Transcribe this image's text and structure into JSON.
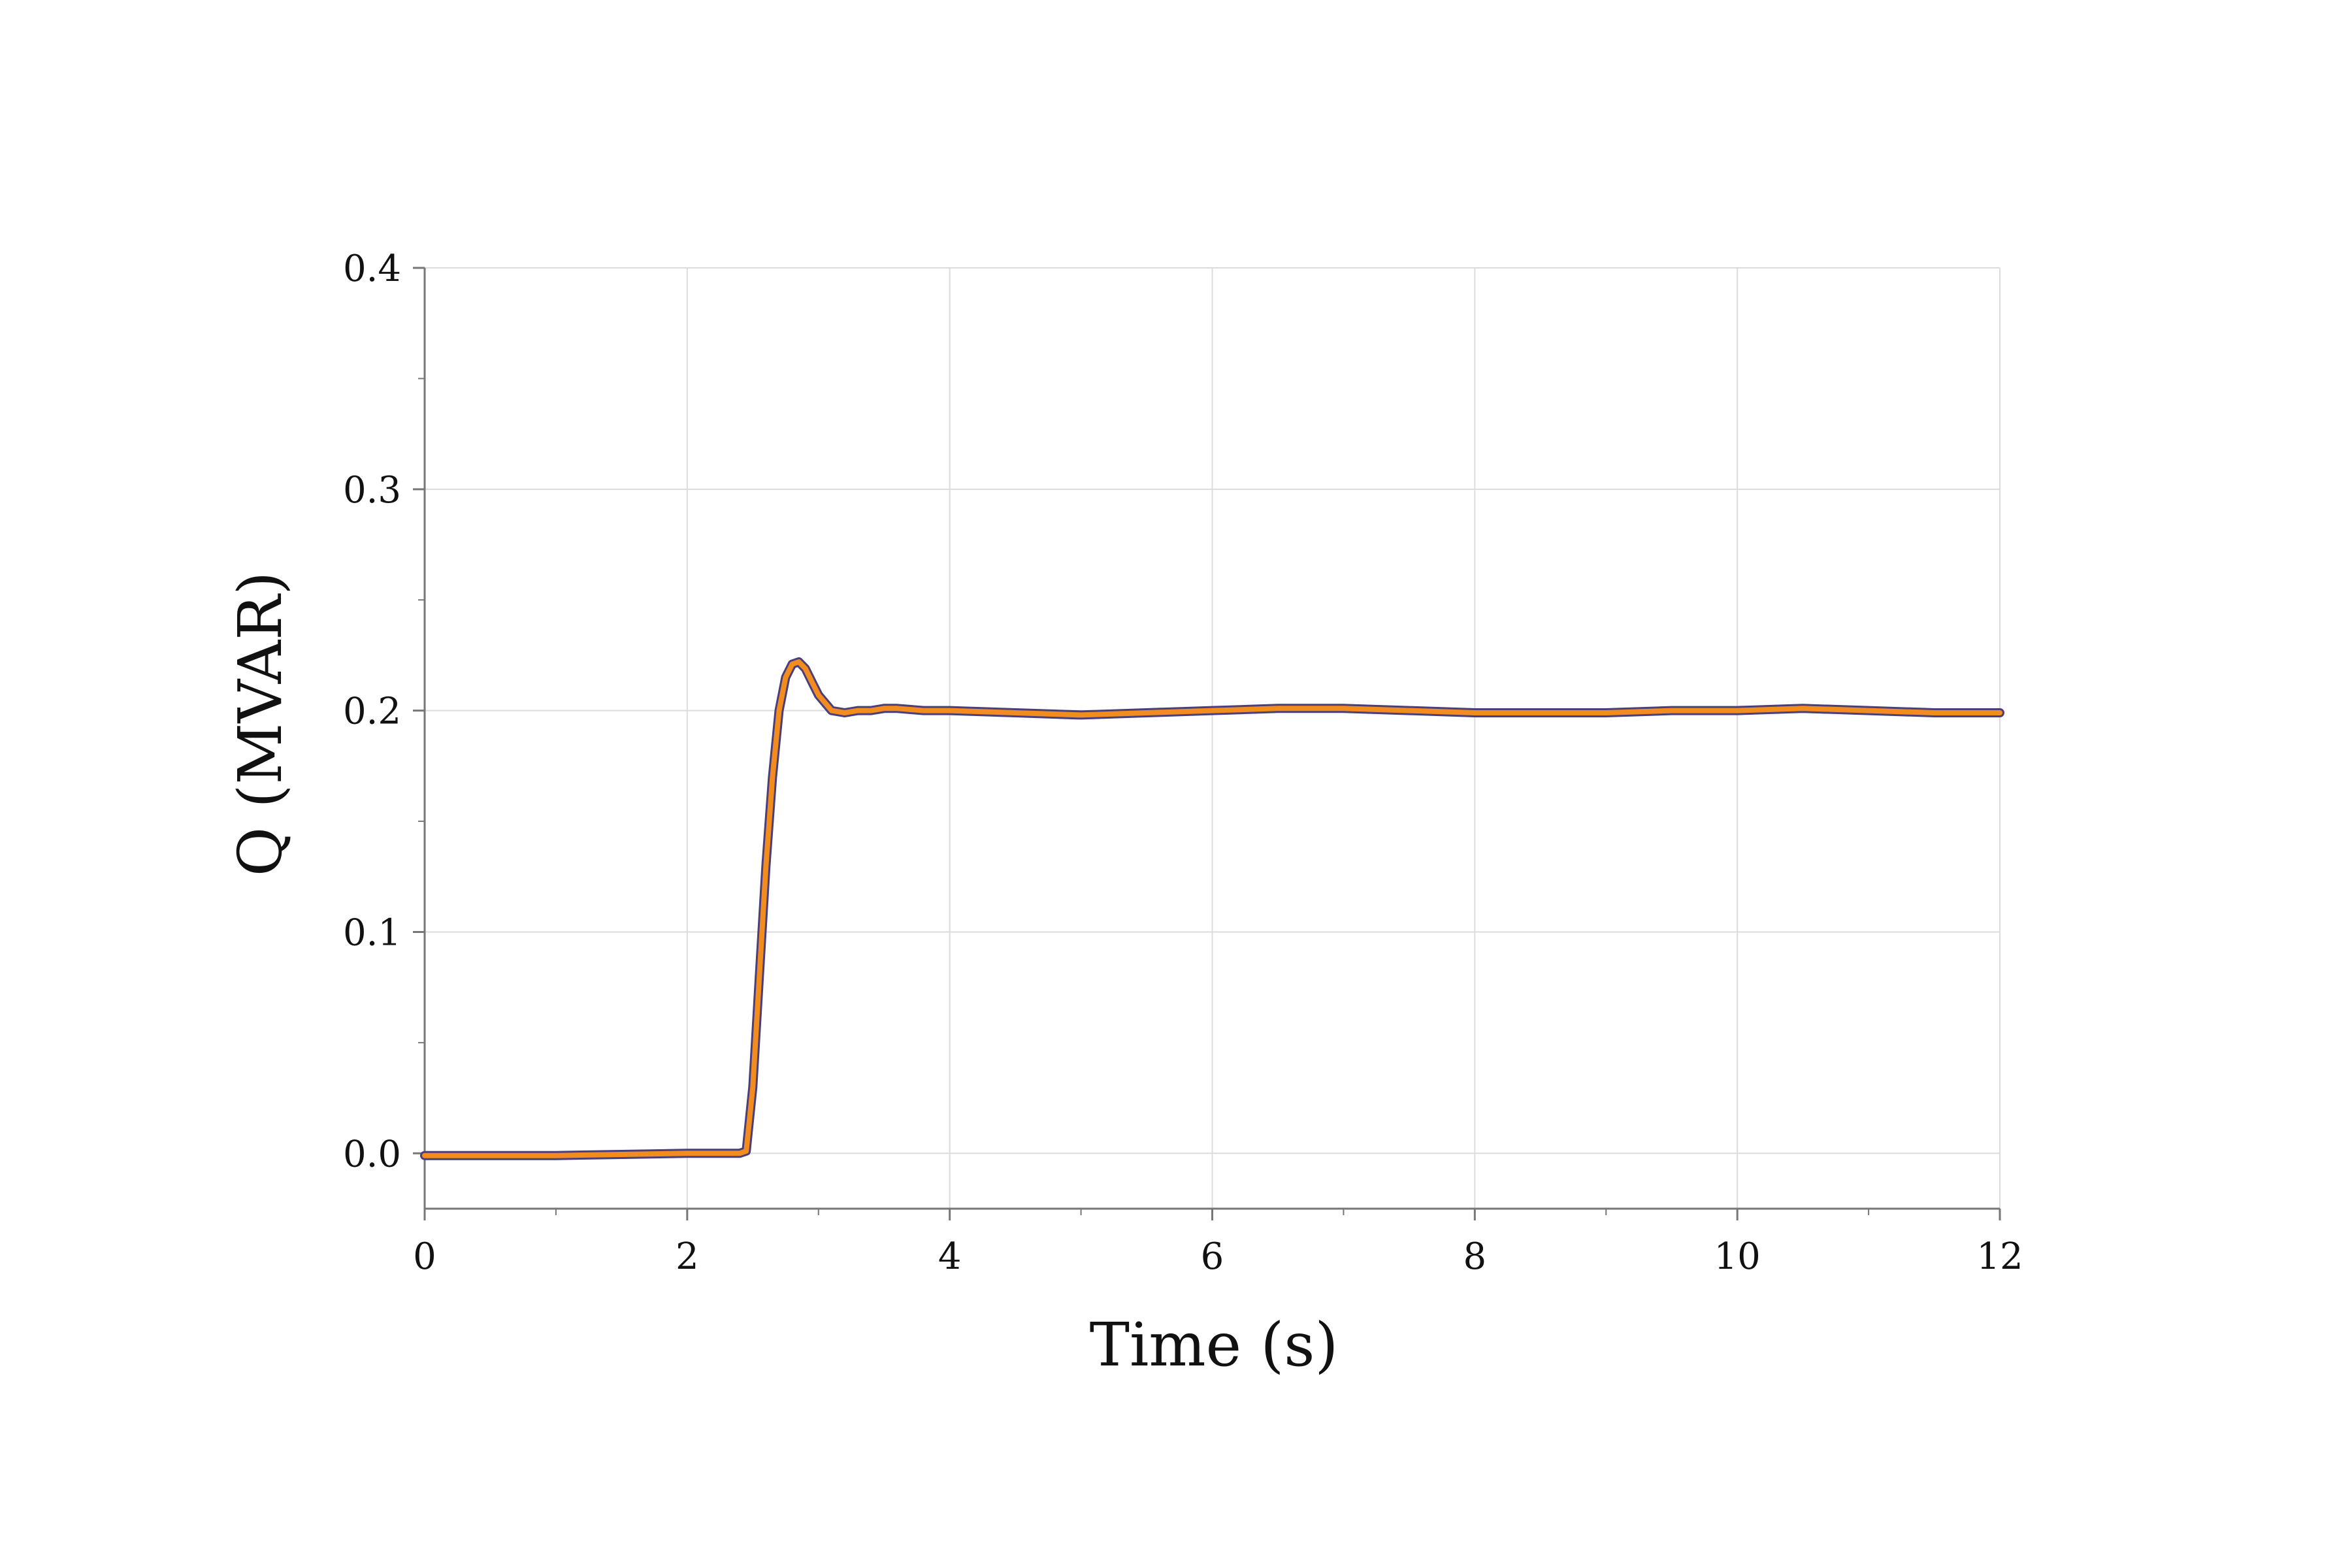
{
  "chart_data": {
    "type": "line",
    "title": "",
    "xlabel": "Time (s)",
    "ylabel": "Q (MVAR)",
    "xlim": [
      0,
      12
    ],
    "ylim": [
      -0.025,
      0.4
    ],
    "x_ticks": [
      0,
      2,
      4,
      6,
      8,
      10,
      12
    ],
    "x_tick_labels": [
      "0",
      "2",
      "4",
      "6",
      "8",
      "10",
      "12"
    ],
    "x_minor_ticks": [
      1,
      3,
      5,
      7,
      9,
      11
    ],
    "y_ticks": [
      0.0,
      0.1,
      0.2,
      0.3,
      0.4
    ],
    "y_tick_labels": [
      "0.0",
      "0.1",
      "0.2",
      "0.3",
      "0.4"
    ],
    "y_minor_ticks": [
      0.05,
      0.15,
      0.25,
      0.35
    ],
    "grid": true,
    "legend": "none",
    "colors": {
      "grid": "#dcdcdc",
      "axis": "#777777",
      "series_under": "#4a3f7a",
      "series_over": "#f28c1e"
    },
    "series": [
      {
        "x": [
          0,
          0.5,
          1.0,
          1.5,
          2.0,
          2.3,
          2.4,
          2.45,
          2.5,
          2.55,
          2.6,
          2.65,
          2.7,
          2.75,
          2.8,
          2.85,
          2.9,
          2.95,
          3.0,
          3.1,
          3.2,
          3.3,
          3.4,
          3.5,
          3.6,
          3.8,
          4.0,
          4.5,
          5.0,
          5.5,
          6.0,
          6.5,
          7.0,
          7.5,
          8.0,
          8.5,
          9.0,
          9.5,
          10.0,
          10.5,
          11.0,
          11.5,
          12.0
        ],
        "y": [
          -0.001,
          -0.001,
          -0.001,
          -0.0005,
          0.0,
          0.0,
          0.0,
          0.001,
          0.03,
          0.08,
          0.13,
          0.17,
          0.2,
          0.215,
          0.221,
          0.222,
          0.219,
          0.213,
          0.207,
          0.2,
          0.199,
          0.2,
          0.2,
          0.201,
          0.201,
          0.2,
          0.2,
          0.199,
          0.198,
          0.199,
          0.2,
          0.201,
          0.201,
          0.2,
          0.199,
          0.199,
          0.199,
          0.2,
          0.2,
          0.201,
          0.2,
          0.199,
          0.199
        ]
      }
    ]
  }
}
